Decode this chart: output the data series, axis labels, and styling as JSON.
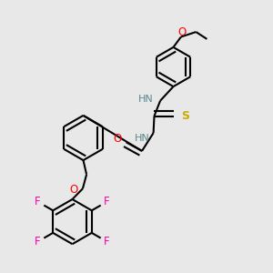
{
  "background_color": "#e8e8e8",
  "figsize": [
    3.0,
    3.0
  ],
  "dpi": 100,
  "colors": {
    "C": "#000000",
    "H": "#5a8a8a",
    "N": "#0000ff",
    "O": "#ff0000",
    "S": "#ccaa00",
    "F": "#ff00aa",
    "bond": "#000000"
  },
  "bond_width": 1.5
}
